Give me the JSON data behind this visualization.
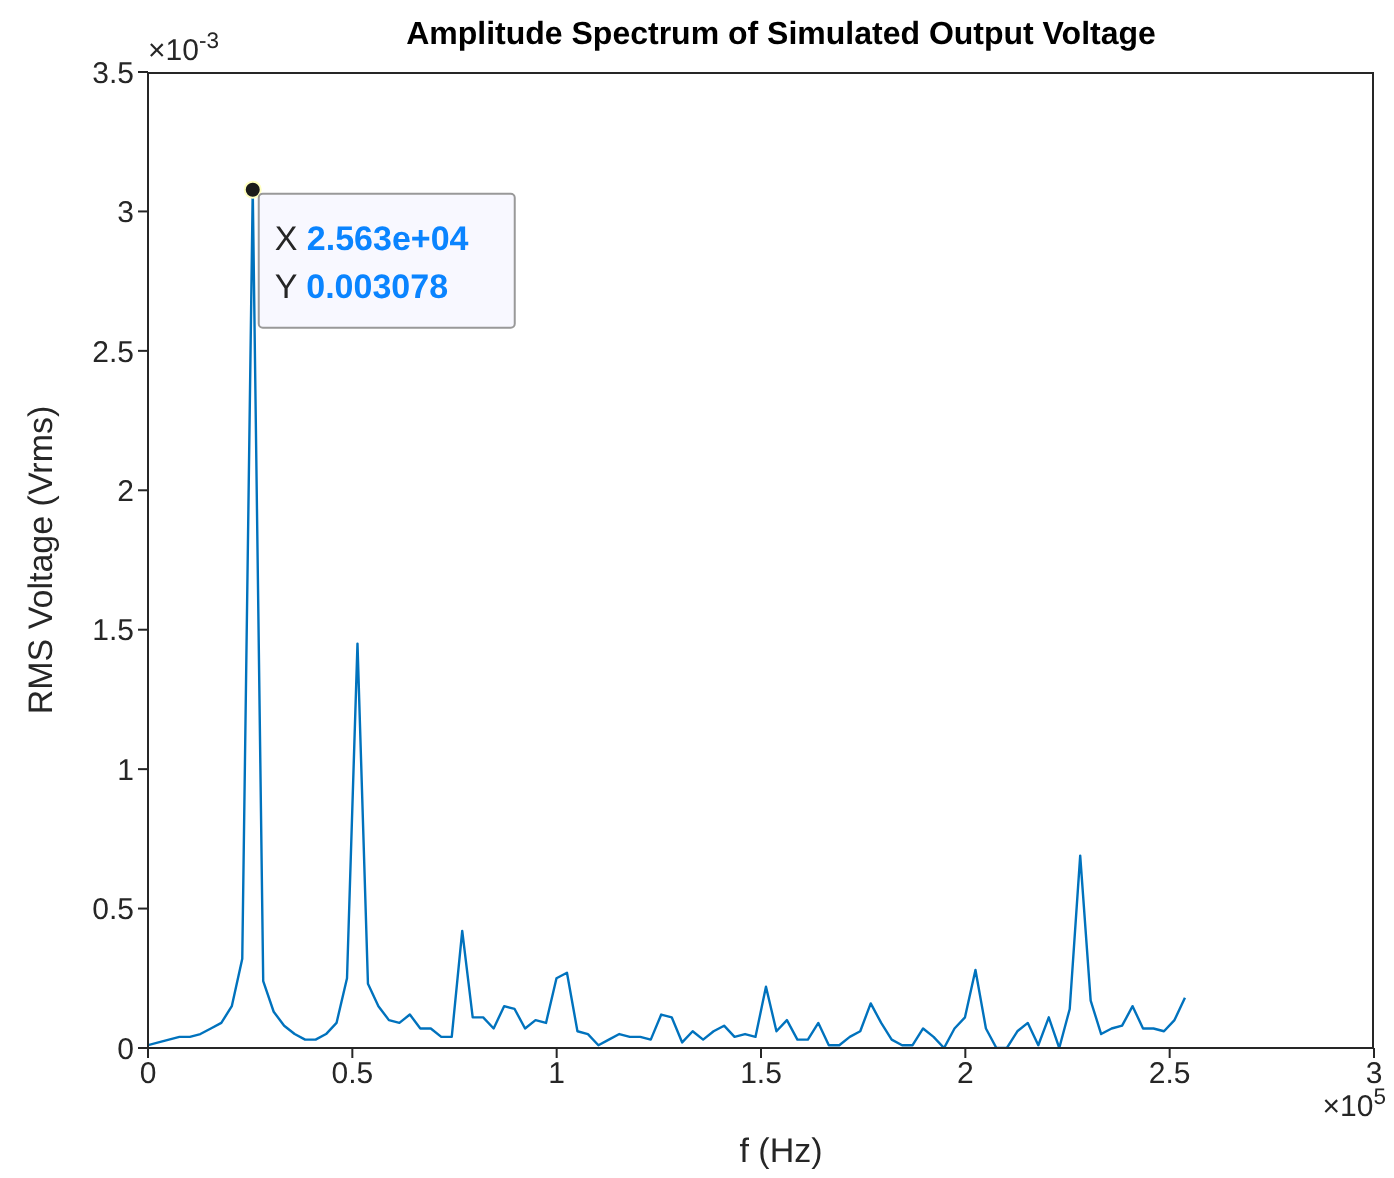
{
  "chart_data": {
    "type": "line",
    "title": "Amplitude Spectrum of Simulated Output Voltage",
    "xlabel": "f (Hz)",
    "ylabel": "RMS Voltage (Vrms)",
    "x": [
      0,
      0.02563,
      0.05126,
      0.07689,
      0.10252,
      0.12815,
      0.15378,
      0.17941,
      0.20504,
      0.23067,
      0.2563,
      0.28193,
      0.30756,
      0.33319,
      0.35882,
      0.38445,
      0.41008,
      0.43571,
      0.46134,
      0.48697,
      0.5126,
      0.53823,
      0.56386,
      0.58949,
      0.61512,
      0.64075,
      0.66638,
      0.69201,
      0.71764,
      0.74327,
      0.7689,
      0.79453,
      0.82016,
      0.84579,
      0.87142,
      0.89705,
      0.92268,
      0.94831,
      0.97394,
      0.99957,
      1.0252,
      1.05083,
      1.07646,
      1.10209,
      1.12772,
      1.15335,
      1.17898,
      1.20461,
      1.23024,
      1.25587,
      1.2815,
      1.30713,
      1.33276,
      1.35839,
      1.38402,
      1.40965,
      1.43528,
      1.46091,
      1.48654,
      1.51217,
      1.5378,
      1.56343,
      1.58906,
      1.61469,
      1.64032,
      1.66595,
      1.69158,
      1.71721,
      1.74284,
      1.76847,
      1.7941,
      1.81973,
      1.84536,
      1.87099,
      1.89662,
      1.92225,
      1.94788,
      1.97351,
      1.99914,
      2.02477,
      2.0504,
      2.07603,
      2.10166,
      2.12729,
      2.15292,
      2.17855,
      2.20418,
      2.22981,
      2.25544,
      2.28107,
      2.3067,
      2.33233,
      2.35796,
      2.38359,
      2.40922,
      2.43485,
      2.46048,
      2.48611,
      2.51174,
      2.53737
    ],
    "series": [
      {
        "color": "#0072bd",
        "values": [
          0.01,
          0.02,
          0.03,
          0.04,
          0.04,
          0.05,
          0.07,
          0.09,
          0.15,
          0.32,
          3.078,
          0.24,
          0.13,
          0.08,
          0.05,
          0.03,
          0.03,
          0.05,
          0.09,
          0.25,
          1.45,
          0.23,
          0.15,
          0.1,
          0.09,
          0.12,
          0.07,
          0.07,
          0.04,
          0.04,
          0.42,
          0.11,
          0.11,
          0.07,
          0.15,
          0.14,
          0.07,
          0.1,
          0.09,
          0.25,
          0.27,
          0.06,
          0.05,
          0.01,
          0.03,
          0.05,
          0.04,
          0.04,
          0.03,
          0.12,
          0.11,
          0.02,
          0.06,
          0.03,
          0.06,
          0.08,
          0.04,
          0.05,
          0.04,
          0.22,
          0.06,
          0.1,
          0.03,
          0.03,
          0.09,
          0.01,
          0.01,
          0.04,
          0.06,
          0.16,
          0.09,
          0.03,
          0.01,
          0.01,
          0.07,
          0.04,
          0,
          0.07,
          0.11,
          0.28,
          0.07,
          0,
          0,
          0.06,
          0.09,
          0.01,
          0.11,
          0,
          0.14,
          0.69,
          0.17,
          0.05,
          0.07,
          0.08,
          0.15,
          0.07,
          0.07,
          0.06,
          0.1,
          0.18
        ]
      }
    ],
    "xlim": [
      0,
      3
    ],
    "xticks": [
      0,
      0.5,
      1,
      1.5,
      2,
      2.5,
      3
    ],
    "ylim": [
      0,
      3.5
    ],
    "yticks": [
      0,
      0.5,
      1,
      1.5,
      2,
      2.5,
      3,
      3.5
    ],
    "grid": false,
    "legend": false,
    "marker": "none",
    "line_style": "solid",
    "annotations": [
      {
        "text": "X 2.563e+04\nY 0.003078",
        "x": 0.2563,
        "y": 3.078
      },
      "×10$^{-3}$",
      "×10$^{5}$"
    ]
  }
}
